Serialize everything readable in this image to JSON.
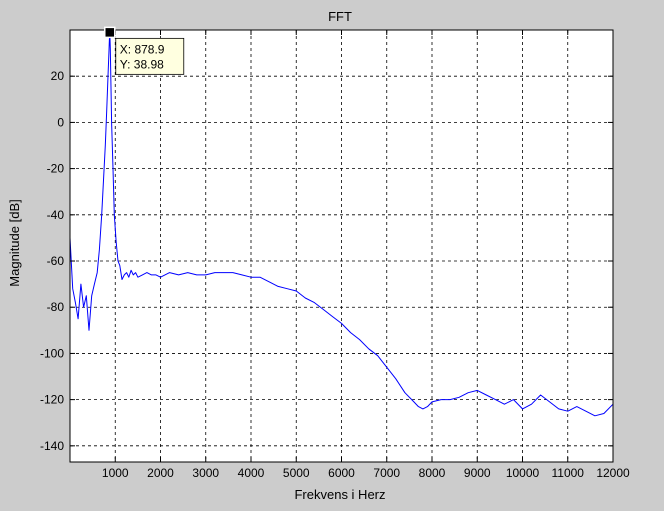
{
  "figure": {
    "background": "#cccccc",
    "axes_background": "#ffffff"
  },
  "chart_data": {
    "type": "line",
    "title": "FFT",
    "xlabel": "Frekvens i Herz",
    "ylabel": "Magnitude [dB]",
    "xlim": [
      0,
      12000
    ],
    "ylim": [
      -147,
      40
    ],
    "grid": true,
    "line_color": "#0000ff",
    "xticks": [
      1000,
      2000,
      3000,
      4000,
      5000,
      6000,
      7000,
      8000,
      9000,
      10000,
      11000,
      12000
    ],
    "yticks": [
      20,
      0,
      -20,
      -40,
      -60,
      -80,
      -100,
      -120,
      -140
    ],
    "series": [
      {
        "x": [
          0,
          60,
          120,
          180,
          240,
          300,
          360,
          420,
          480,
          540,
          600,
          650,
          700,
          740,
          780,
          810,
          840,
          860,
          870,
          878.9,
          890,
          905,
          920,
          950,
          980,
          1020,
          1060,
          1100,
          1150,
          1200,
          1250,
          1300,
          1350,
          1400,
          1450,
          1500,
          1600,
          1700,
          1800,
          1900,
          2000,
          2200,
          2400,
          2600,
          2800,
          3000,
          3200,
          3400,
          3600,
          3800,
          4000,
          4200,
          4400,
          4600,
          4800,
          5000,
          5200,
          5400,
          5600,
          5800,
          6000,
          6200,
          6400,
          6600,
          6800,
          7000,
          7200,
          7400,
          7600,
          7700,
          7800,
          7900,
          8000,
          8200,
          8400,
          8600,
          8800,
          9000,
          9200,
          9400,
          9600,
          9800,
          10000,
          10200,
          10400,
          10600,
          10800,
          11000,
          11200,
          11400,
          11600,
          11800,
          12000
        ],
        "y": [
          -50,
          -72,
          -78,
          -85,
          -70,
          -80,
          -75,
          -90,
          -75,
          -70,
          -65,
          -55,
          -40,
          -25,
          -10,
          5,
          20,
          30,
          36,
          38.98,
          32,
          15,
          0,
          -20,
          -40,
          -52,
          -60,
          -62,
          -68,
          -66,
          -65,
          -67,
          -64,
          -66,
          -65,
          -67,
          -66,
          -65,
          -66,
          -66,
          -67,
          -65,
          -66,
          -65,
          -66,
          -66,
          -65,
          -65,
          -65,
          -66,
          -67,
          -67,
          -69,
          -71,
          -72,
          -73,
          -76,
          -78,
          -81,
          -84,
          -87,
          -91,
          -94,
          -98,
          -101,
          -106,
          -111,
          -117,
          -121,
          -123,
          -124,
          -123,
          -121,
          -120,
          -120,
          -119,
          -117,
          -116,
          -118,
          -120,
          -122,
          -120,
          -124,
          -122,
          -118,
          -121,
          -124,
          -125,
          -123,
          -125,
          -127,
          -126,
          -122
        ]
      }
    ],
    "datatip": {
      "x": 878.9,
      "y": 38.98,
      "x_label": "X: 878.9",
      "y_label": "Y: 38.98"
    }
  }
}
